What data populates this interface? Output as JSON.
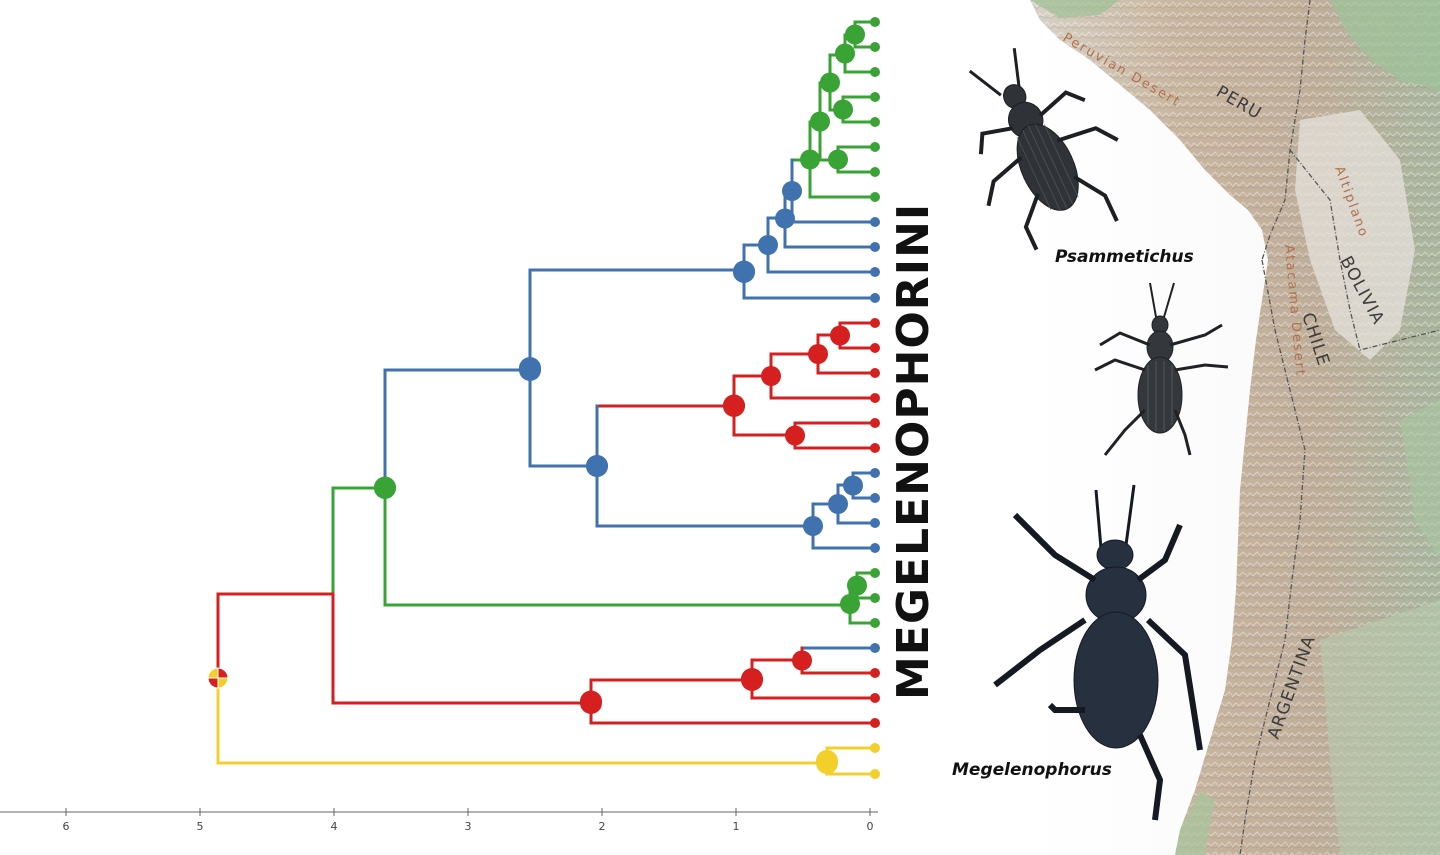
{
  "colors": {
    "green": "#3aa335",
    "blue": "#3f72ae",
    "red": "#d61f1f",
    "yellow": "#f2cf2a",
    "axis": "#555555"
  },
  "axis": {
    "ticks": [
      "6",
      "5",
      "4",
      "3",
      "2",
      "1",
      "0"
    ]
  },
  "clade_label": "MEGELENOPHORINI",
  "genera": {
    "upper": "Psammetichus",
    "lower": "Megelenophorus"
  },
  "map_labels": {
    "peru": "PERU",
    "bolivia": "BOLIVIA",
    "chile": "CHILE",
    "argentina": "ARGENTINA",
    "peruvian_desert": "Peruvian Desert",
    "atacama_desert": "Atacama Desert",
    "altiplano": "Altiplano"
  }
}
